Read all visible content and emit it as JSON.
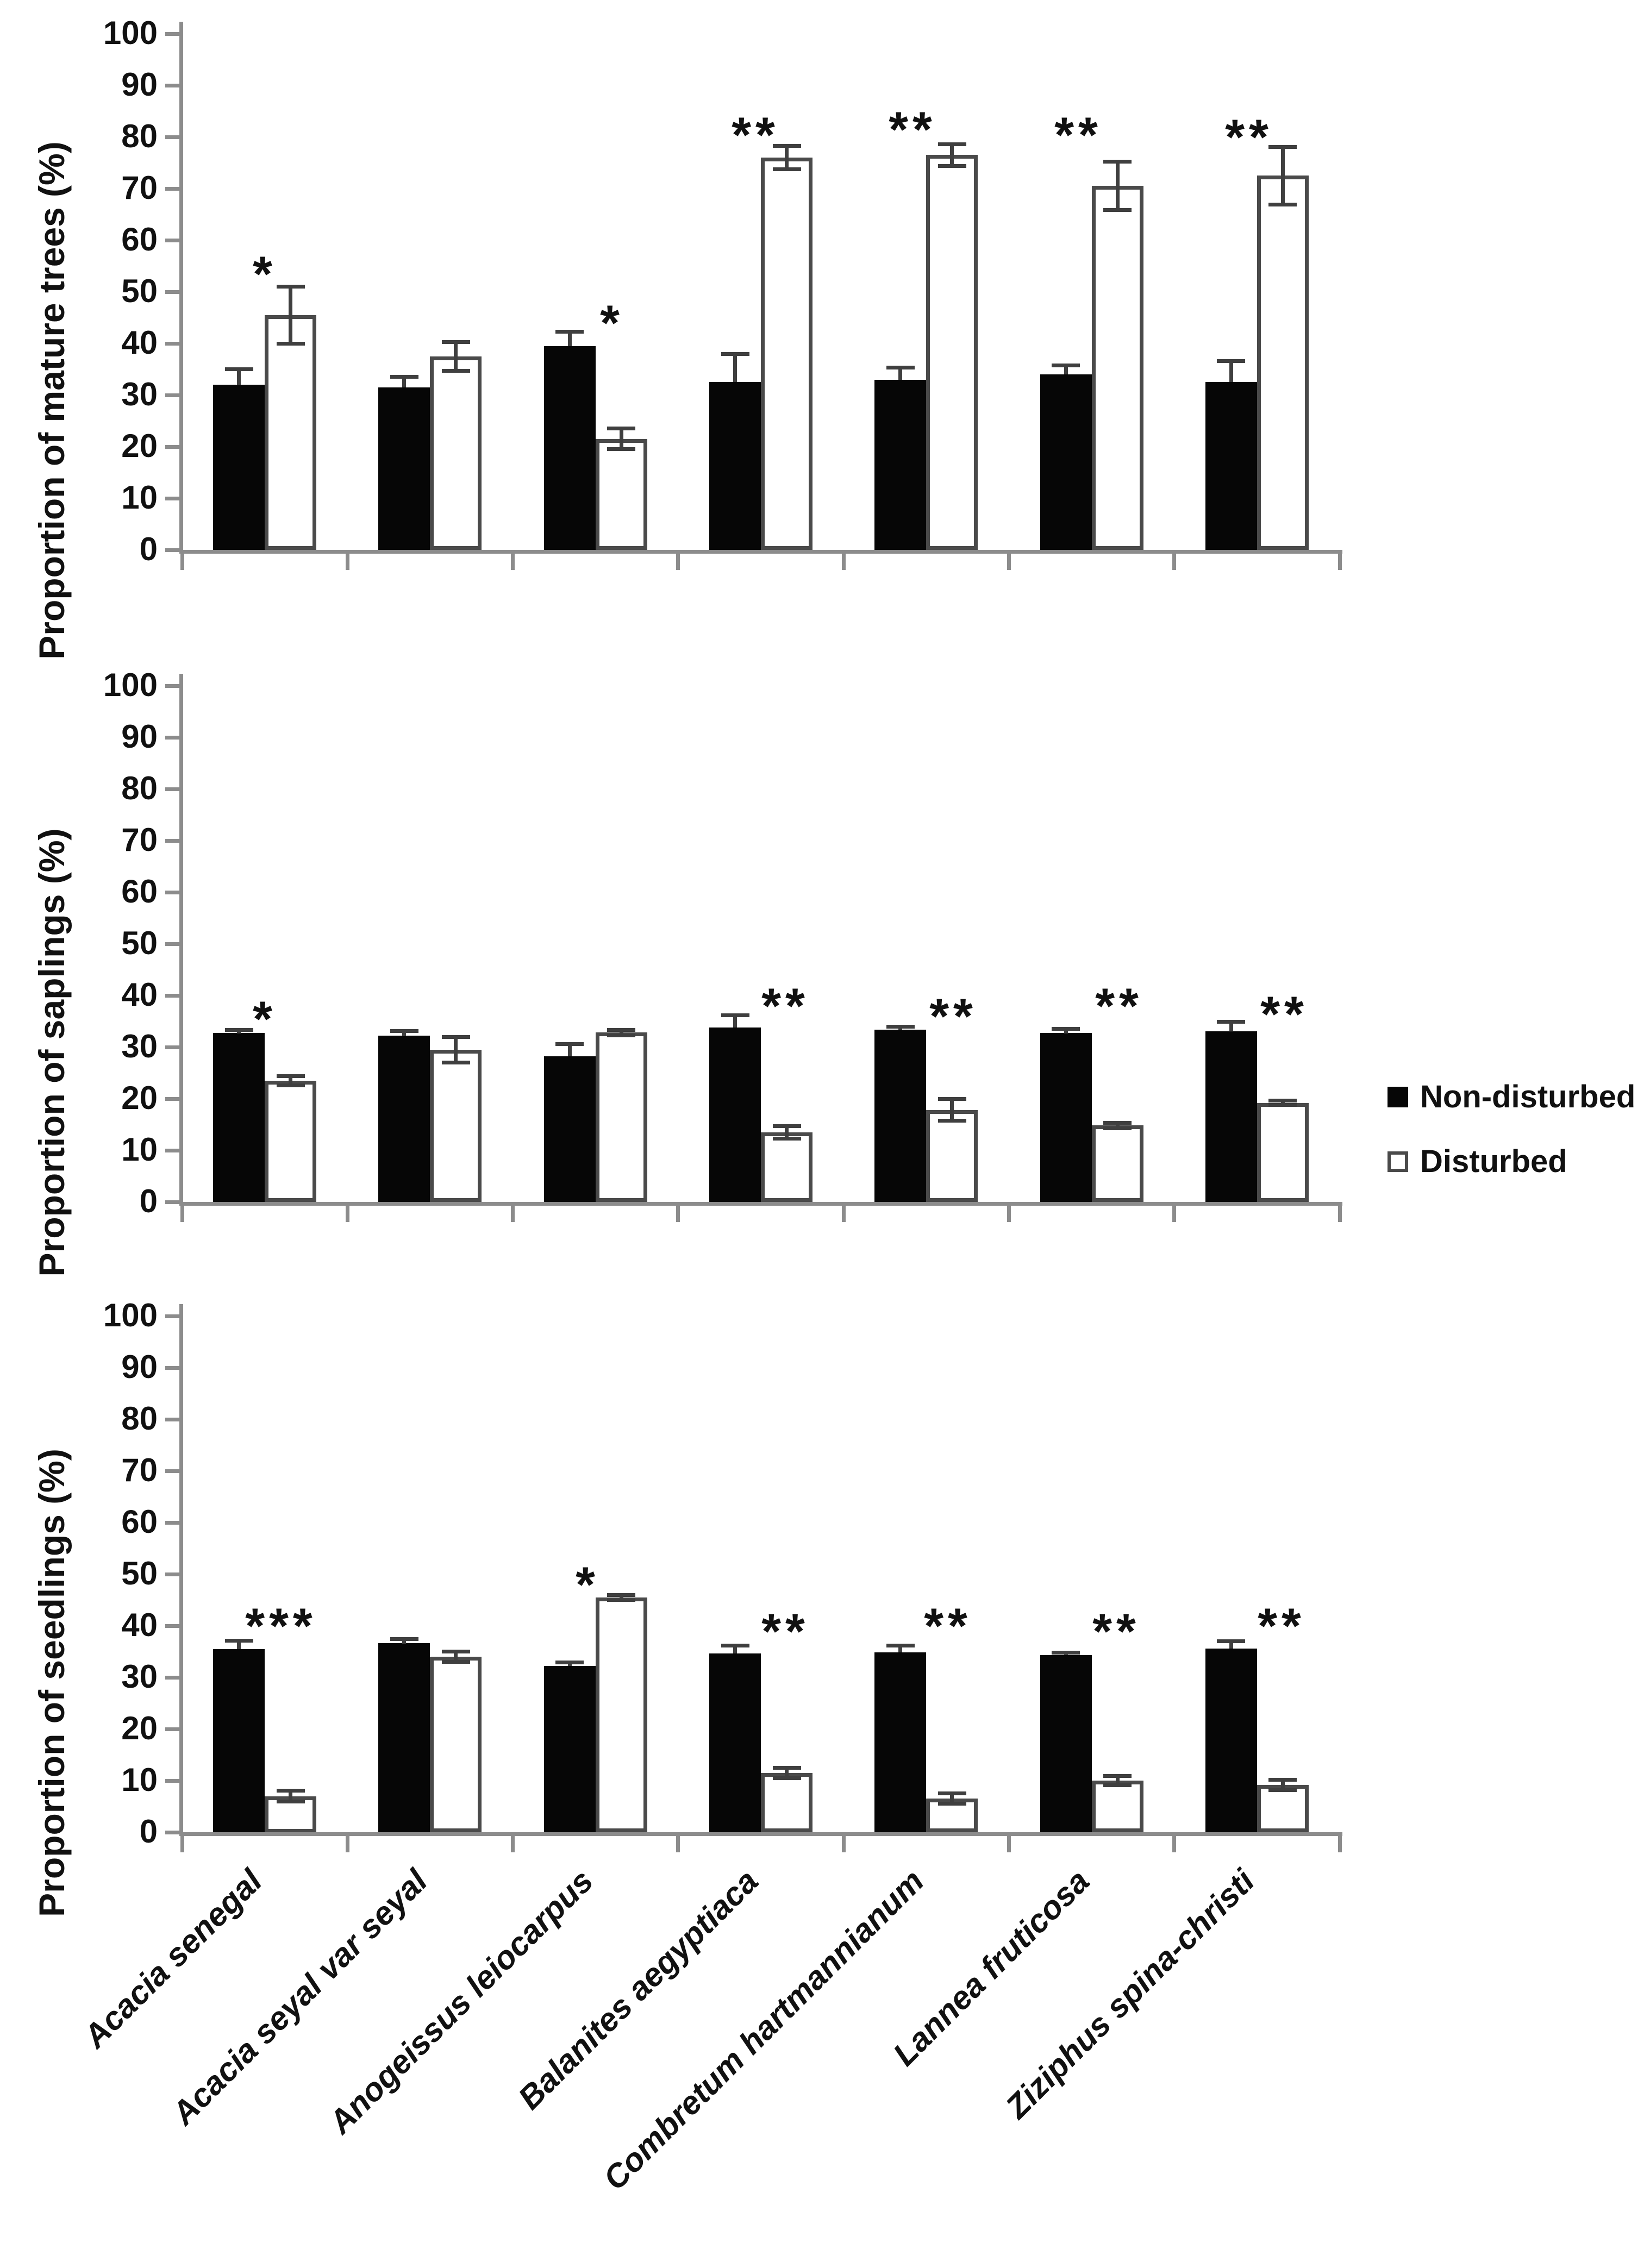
{
  "page": {
    "background": "#ffffff"
  },
  "legend": {
    "position": "right-middle",
    "items": [
      {
        "label": "Non-disturbed",
        "fill": "#000000"
      },
      {
        "label": "Disturbed",
        "fill": "#ffffff"
      }
    ]
  },
  "chart_data": [
    {
      "type": "bar",
      "panel": "mature-trees",
      "ylabel": "Proportion of mature trees (%)",
      "ylim": [
        0,
        100
      ],
      "ytick_step": 10,
      "grid": false,
      "legend_position": "outside-right",
      "categories": [
        "Acacia senegal",
        "Acacia seyal var seyal",
        "Anogeissus leiocarpus",
        "Balanites aegyptiaca",
        "Combretum hartmannianum",
        "Lannea fruticosa",
        "Ziziphus spina-christi"
      ],
      "series": [
        {
          "name": "Non-disturbed",
          "fill": "#000000",
          "values": [
            32,
            31.5,
            39.5,
            32.5,
            33,
            34,
            32.5
          ],
          "errors": [
            3,
            2,
            2.8,
            5.5,
            2.3,
            1.7,
            4.1
          ]
        },
        {
          "name": "Disturbed",
          "fill": "#ffffff",
          "values": [
            45.5,
            37.5,
            21.5,
            76,
            76.5,
            70.5,
            72.5
          ],
          "errors": [
            5.5,
            2.8,
            2,
            2.3,
            2.1,
            4.7,
            5.6
          ]
        }
      ],
      "significance": [
        {
          "group": 0,
          "text": "*",
          "y": 54,
          "dx": 0
        },
        {
          "group": 2,
          "text": "*",
          "y": 44.5,
          "dx": 30
        },
        {
          "group": 3,
          "text": "**",
          "y": 81,
          "dx": -10
        },
        {
          "group": 4,
          "text": "**",
          "y": 82,
          "dx": -25
        },
        {
          "group": 5,
          "text": "**",
          "y": 81,
          "dx": -25
        },
        {
          "group": 6,
          "text": "**",
          "y": 80.5,
          "dx": -15
        }
      ]
    },
    {
      "type": "bar",
      "panel": "saplings",
      "ylabel": "Proportion of saplings (%)",
      "ylim": [
        0,
        100
      ],
      "ytick_step": 10,
      "grid": false,
      "categories": [
        "Acacia senegal",
        "Acacia seyal var seyal",
        "Anogeissus leiocarpus",
        "Balanites aegyptiaca",
        "Combretum hartmannianum",
        "Lannea fruticosa",
        "Ziziphus spina-christi"
      ],
      "series": [
        {
          "name": "Non-disturbed",
          "fill": "#000000",
          "values": [
            32.7,
            32.2,
            28.2,
            33.8,
            33.4,
            32.7,
            33.1
          ],
          "errors": [
            0.6,
            0.9,
            2.4,
            2.4,
            0.5,
            0.8,
            1.8
          ]
        },
        {
          "name": "Disturbed",
          "fill": "#ffffff",
          "values": [
            23.5,
            29.5,
            32.8,
            13.5,
            17.8,
            14.8,
            19.2
          ],
          "errors": [
            0.9,
            2.5,
            0.5,
            1.2,
            2.1,
            0.5,
            0.4
          ]
        }
      ],
      "significance": [
        {
          "group": 0,
          "text": "*",
          "y": 36,
          "dx": 0
        },
        {
          "group": 3,
          "text": "**",
          "y": 38.5,
          "dx": 45
        },
        {
          "group": 4,
          "text": "**",
          "y": 36.5,
          "dx": 50
        },
        {
          "group": 5,
          "text": "**",
          "y": 38.5,
          "dx": 50
        },
        {
          "group": 6,
          "text": "**",
          "y": 37,
          "dx": 50
        }
      ]
    },
    {
      "type": "bar",
      "panel": "seedlings",
      "ylabel": "Proportion of seedlings (%)",
      "ylim": [
        0,
        100
      ],
      "ytick_step": 10,
      "grid": false,
      "categories": [
        "Acacia senegal",
        "Acacia seyal var seyal",
        "Anogeissus leiocarpus",
        "Balanites aegyptiaca",
        "Combretum hartmannianum",
        "Lannea fruticosa",
        "Ziziphus spina-christi"
      ],
      "series": [
        {
          "name": "Non-disturbed",
          "fill": "#000000",
          "values": [
            35.5,
            36.6,
            32.2,
            34.6,
            34.8,
            34.3,
            35.6
          ],
          "errors": [
            1.6,
            0.8,
            0.7,
            1.6,
            1.4,
            0.5,
            1.4
          ]
        },
        {
          "name": "Disturbed",
          "fill": "#ffffff",
          "values": [
            7,
            34,
            45.5,
            11.5,
            6.5,
            10,
            9.2
          ],
          "errors": [
            1.1,
            1,
            0.5,
            1,
            1,
            0.9,
            1
          ]
        }
      ],
      "significance": [
        {
          "group": 0,
          "text": "***",
          "y": 40.5,
          "dx": 30
        },
        {
          "group": 2,
          "text": "*",
          "y": 48.5,
          "dx": -15
        },
        {
          "group": 3,
          "text": "**",
          "y": 39.5,
          "dx": 45
        },
        {
          "group": 4,
          "text": "**",
          "y": 40.5,
          "dx": 40
        },
        {
          "group": 5,
          "text": "**",
          "y": 39.5,
          "dx": 45
        },
        {
          "group": 6,
          "text": "**",
          "y": 40.5,
          "dx": 45
        }
      ]
    }
  ]
}
